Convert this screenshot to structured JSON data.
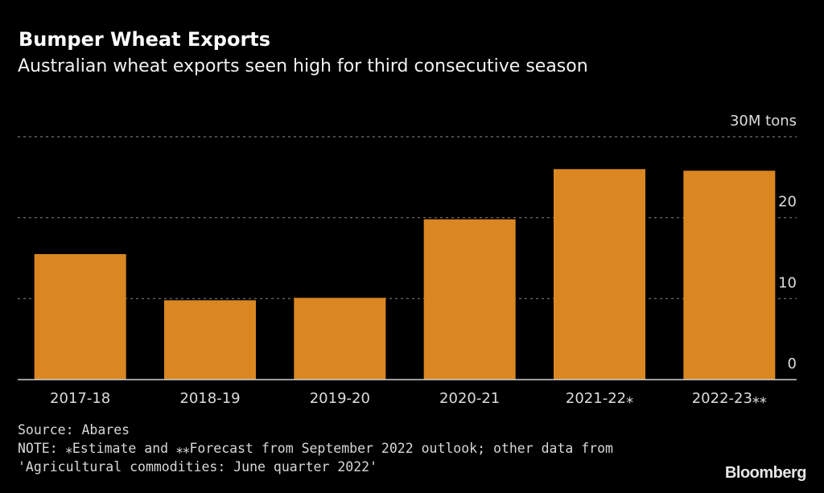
{
  "chart_data": {
    "type": "bar",
    "title": "Bumper Wheat Exports",
    "subtitle": "Australian wheat exports seen high for third consecutive season",
    "categories": [
      "2017-18",
      "2018-19",
      "2019-20",
      "2020-21",
      "2021-22*",
      "2022-23**"
    ],
    "values": [
      15.5,
      9.8,
      10.1,
      19.8,
      26.0,
      25.8
    ],
    "xlabel": "",
    "ylabel": "",
    "unit_label": "30M tons",
    "ylim": [
      0,
      30
    ],
    "yticks": [
      0,
      10,
      20,
      30
    ],
    "ytick_labels": [
      "0",
      "10",
      "20",
      "30M tons"
    ],
    "grid": true,
    "bar_color": "#DA8722",
    "y_axis_position": "right"
  },
  "footer": {
    "source": "Source: Abares",
    "note_line1": "NOTE: ⁎Estimate and ⁎⁎Forecast from September 2022 outlook; other data from",
    "note_line2": "'Agricultural commodities: June quarter 2022'",
    "brand": "Bloomberg"
  }
}
